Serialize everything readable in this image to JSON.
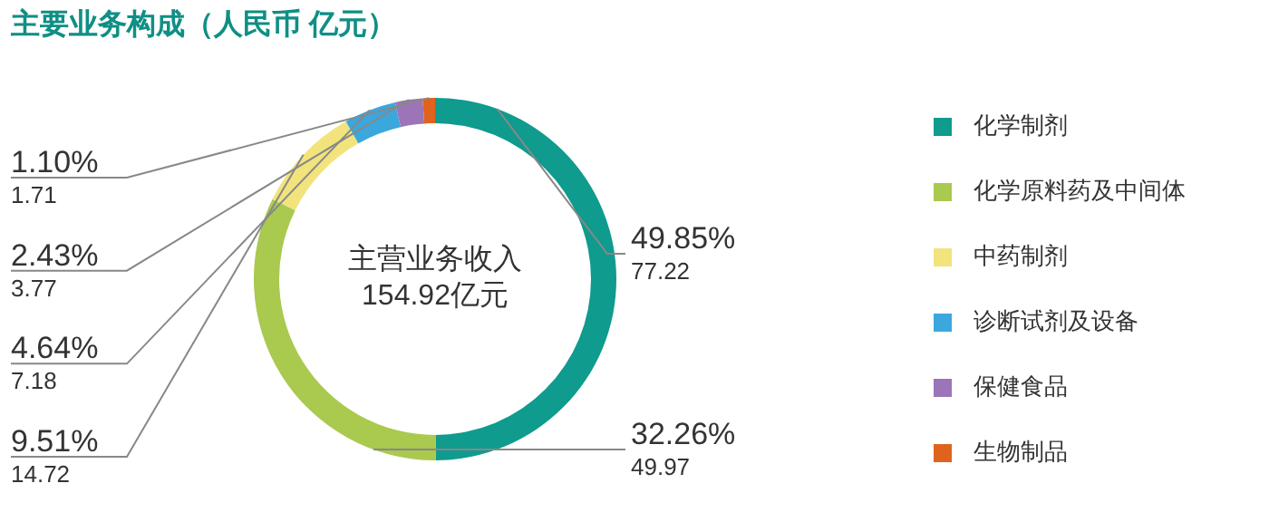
{
  "chart_data": {
    "type": "donut",
    "title": "主要业务构成（人民币 亿元）",
    "categories": [
      "化学制剂",
      "化学原料药及中间体",
      "中药制剂",
      "诊断试剂及设备",
      "保健食品",
      "生物制品"
    ],
    "values": [
      49.85,
      32.26,
      9.51,
      4.64,
      2.43,
      1.1
    ],
    "value_labels": [
      "49.85%",
      "32.26%",
      "9.51%",
      "4.64%",
      "2.43%",
      "1.10%"
    ],
    "colors": [
      "#0f9b8e",
      "#aac94f",
      "#f2e37d",
      "#3ba7dd",
      "#9c74b8",
      "#e0631d"
    ],
    "annotations": [
      "主营业务收入",
      "154.92亿元",
      {
        "text": "77.22",
        "x": "化学制剂"
      },
      {
        "text": "49.97",
        "x": "化学原料药及中间体"
      },
      {
        "text": "14.72",
        "x": "中药制剂"
      },
      {
        "text": "7.18",
        "x": "诊断试剂及设备"
      },
      {
        "text": "3.77",
        "x": "保健食品"
      },
      {
        "text": "1.71",
        "x": "生物制品"
      }
    ],
    "legend": "right"
  }
}
